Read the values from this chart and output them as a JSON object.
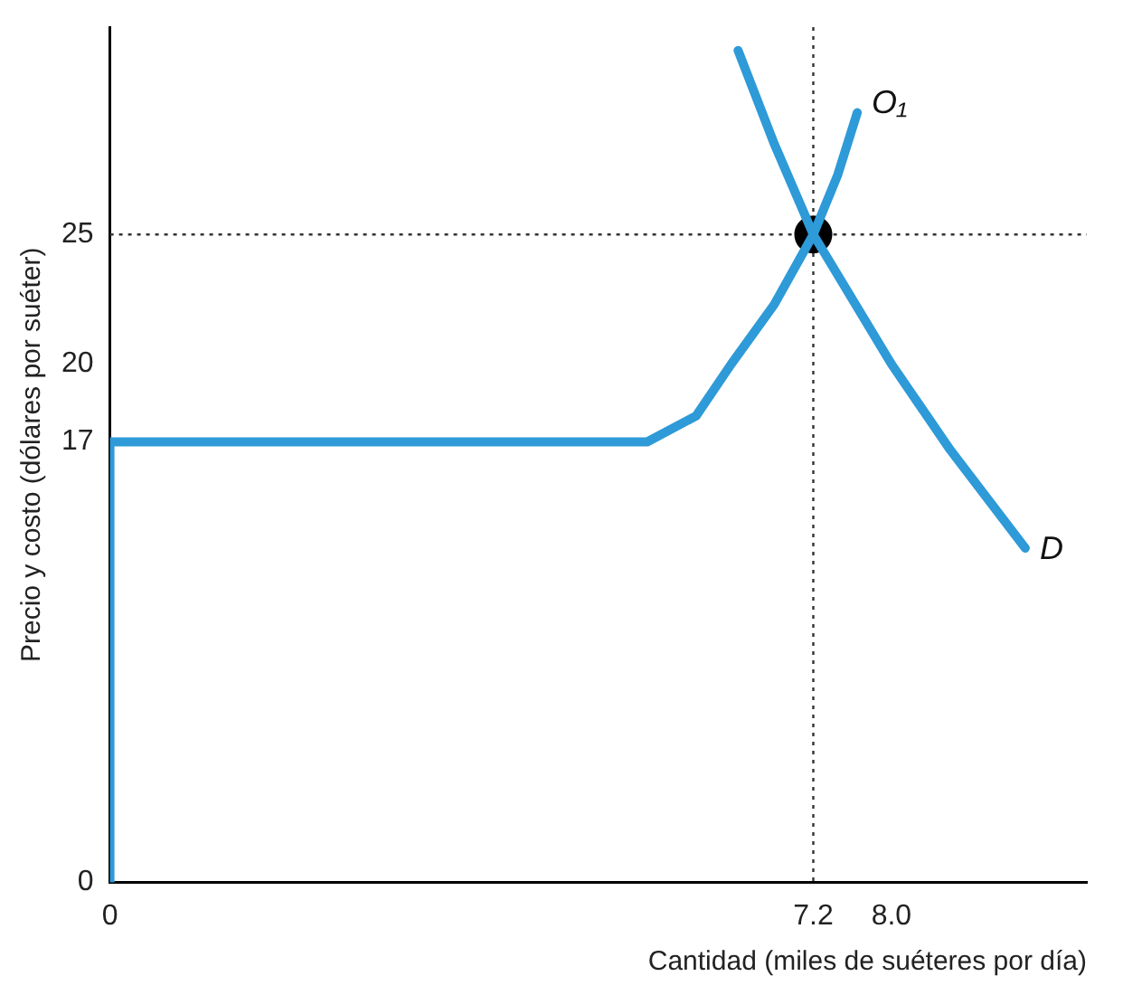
{
  "chart_data": {
    "type": "line",
    "xlabel": "Cantidad (miles de suéteres por día)",
    "ylabel": "Precio y costo (dólares por suéter)",
    "xlim": [
      0,
      10
    ],
    "xticks": [
      0,
      7.2,
      {
        "value": 8,
        "label": "8.0"
      }
    ],
    "ylim": [
      0,
      33
    ],
    "yticks": [
      0,
      17,
      20,
      25
    ],
    "grid": false,
    "legend": false,
    "series": [
      {
        "name": "O₁",
        "type": "line",
        "marker": "none",
        "color": "#2e9ad8",
        "x": [
          0,
          0,
          5.5,
          6.0,
          6.36,
          6.8,
          7.2,
          7.45,
          7.65
        ],
        "values": [
          0,
          17,
          17,
          18,
          20,
          22.3,
          25,
          27.3,
          29.7
        ]
      },
      {
        "name": "D",
        "type": "line",
        "marker": "none",
        "color": "#2e9ad8",
        "x": [
          6.43,
          6.8,
          7.2,
          8.0,
          8.6,
          9.37
        ],
        "values": [
          32.1,
          28.5,
          25,
          20,
          16.7,
          12.9
        ]
      },
      {
        "type": "scatter",
        "marker": "circle",
        "color": "#000000",
        "x": [
          7.2
        ],
        "values": [
          25
        ]
      }
    ],
    "ref_lines": [
      {
        "axis": "x",
        "value": 7.2,
        "line_style": "dotted",
        "color": "#333333"
      },
      {
        "axis": "y",
        "value": 25,
        "line_style": "dotted",
        "color": "#333333"
      }
    ]
  }
}
